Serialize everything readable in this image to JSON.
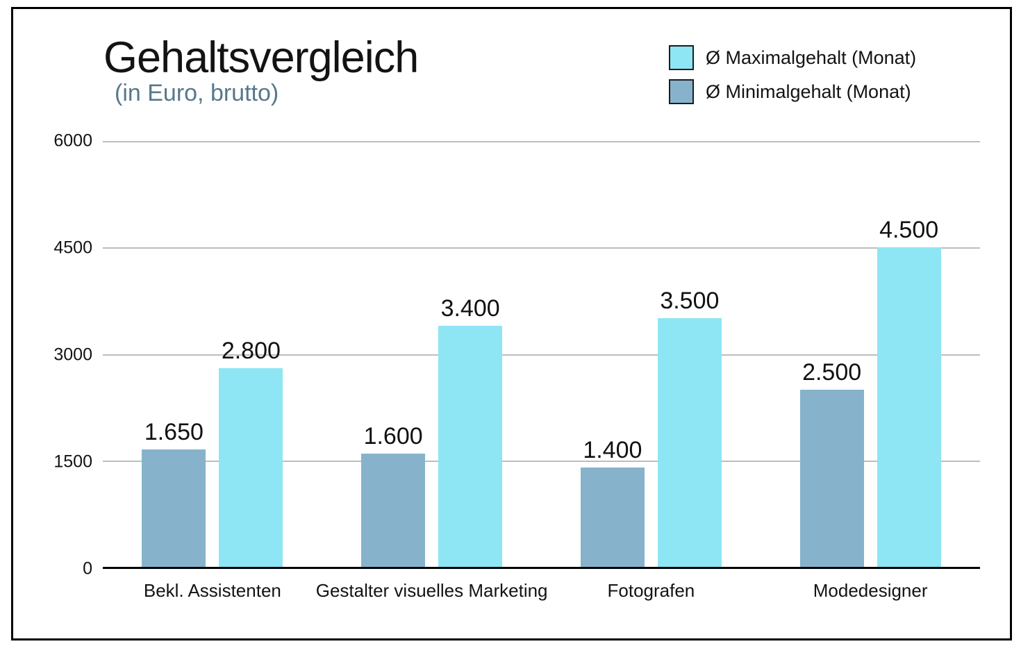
{
  "header": {
    "title": "Gehaltsvergleich",
    "subtitle": "(in Euro, brutto)"
  },
  "legend": {
    "items": [
      {
        "label": "Ø Maximalgehalt (Monat)",
        "color": "#8ee5f4"
      },
      {
        "label": "Ø Minimalgehalt (Monat)",
        "color": "#86b3cb"
      }
    ]
  },
  "colors": {
    "max_bar": "#8ee5f4",
    "min_bar": "#86b3cb",
    "subtitle": "#56788b",
    "gridline": "#bdbdbd",
    "axis": "#000000",
    "text": "#131313"
  },
  "chart_data": {
    "type": "bar",
    "title": "Gehaltsvergleich",
    "subtitle": "(in Euro, brutto)",
    "categories": [
      "Bekl. Assistenten",
      "Gestalter visuelles Marketing",
      "Fotografen",
      "Modedesigner"
    ],
    "series": [
      {
        "name": "Ø Minimalgehalt (Monat)",
        "color": "#86b3cb",
        "values": [
          1650,
          1600,
          1400,
          2500
        ],
        "value_labels": [
          "1.650",
          "1.600",
          "1.400",
          "2.500"
        ]
      },
      {
        "name": "Ø Maximalgehalt (Monat)",
        "color": "#8ee5f4",
        "values": [
          2800,
          3400,
          3500,
          4500
        ],
        "value_labels": [
          "2.800",
          "3.400",
          "3.500",
          "4.500"
        ]
      }
    ],
    "xlabel": "",
    "ylabel": "",
    "ylim": [
      0,
      6000
    ],
    "yticks": [
      0,
      1500,
      3000,
      4500,
      6000
    ],
    "ytick_labels": [
      "0",
      "1500",
      "3000",
      "4500",
      "6000"
    ],
    "grid": true,
    "legend_position": "top-right"
  }
}
